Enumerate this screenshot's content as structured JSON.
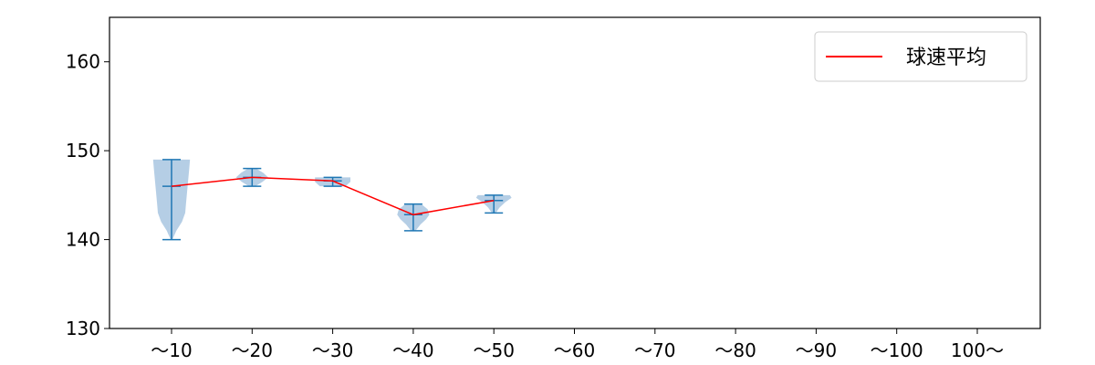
{
  "chart_data": {
    "type": "violin",
    "categories": [
      "～10",
      "～20",
      "～30",
      "～40",
      "～50",
      "～60",
      "～70",
      "～80",
      "～90",
      "～100",
      "100～"
    ],
    "ylim": [
      130,
      165
    ],
    "yticks": [
      130,
      140,
      150,
      160
    ],
    "grid": false,
    "legend": {
      "placement": "top-right",
      "entries": [
        {
          "label": "球速平均",
          "color": "#ff0000",
          "marker": "line"
        }
      ]
    },
    "mean_line": {
      "name": "球速平均",
      "color": "#ff0000",
      "values": [
        146,
        147,
        146.6,
        142.8,
        144.4,
        null,
        null,
        null,
        null,
        null,
        null
      ]
    },
    "distributions": [
      {
        "category": "～10",
        "min": 140,
        "max": 149,
        "mean": 146,
        "shape": [
          [
            140,
            0.02
          ],
          [
            141,
            0.12
          ],
          [
            142,
            0.26
          ],
          [
            143,
            0.34
          ],
          [
            144,
            0.36
          ],
          [
            145,
            0.38
          ],
          [
            146,
            0.4
          ],
          [
            147,
            0.42
          ],
          [
            148,
            0.44
          ],
          [
            149,
            0.46
          ]
        ]
      },
      {
        "category": "～20",
        "min": 146,
        "max": 148,
        "mean": 147,
        "shape": [
          [
            146,
            0.08
          ],
          [
            146.5,
            0.26
          ],
          [
            147,
            0.4
          ],
          [
            147.5,
            0.28
          ],
          [
            148,
            0.1
          ]
        ]
      },
      {
        "category": "～30",
        "min": 146,
        "max": 147,
        "mean": 146.6,
        "shape": [
          [
            146,
            0.32
          ],
          [
            146.5,
            0.44
          ],
          [
            147,
            0.44
          ]
        ]
      },
      {
        "category": "～40",
        "min": 141,
        "max": 144,
        "mean": 142.8,
        "shape": [
          [
            141,
            0.06
          ],
          [
            141.7,
            0.18
          ],
          [
            142.3,
            0.32
          ],
          [
            142.8,
            0.4
          ],
          [
            143.4,
            0.36
          ],
          [
            144,
            0.2
          ]
        ]
      },
      {
        "category": "～50",
        "min": 143,
        "max": 145,
        "mean": 144.4,
        "shape": [
          [
            143,
            0.05
          ],
          [
            143.6,
            0.14
          ],
          [
            144.2,
            0.28
          ],
          [
            144.7,
            0.44
          ],
          [
            145,
            0.4
          ]
        ]
      }
    ],
    "colors": {
      "violin_fill": "#a8c6e0",
      "violin_edge": "#1f77b4",
      "mean": "#ff0000",
      "axis": "#000000"
    }
  }
}
